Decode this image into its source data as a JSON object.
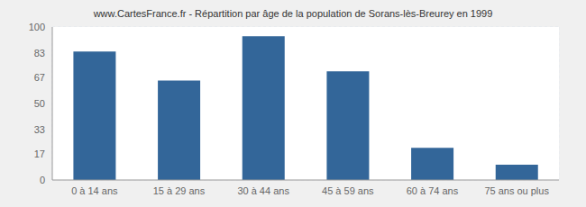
{
  "chart_data": {
    "type": "bar",
    "title": "www.CartesFrance.fr - Répartition par âge de la population de Sorans-lès-Breurey en 1999",
    "categories": [
      "0 à 14 ans",
      "15 à 29 ans",
      "30 à 44 ans",
      "45 à 59 ans",
      "60 à 74 ans",
      "75 ans ou plus"
    ],
    "values": [
      84,
      65,
      94,
      71,
      21,
      10
    ],
    "color": "#336699",
    "ylim": [
      0,
      100
    ],
    "yticks": [
      0,
      17,
      33,
      50,
      67,
      83,
      100
    ],
    "grid": true
  }
}
